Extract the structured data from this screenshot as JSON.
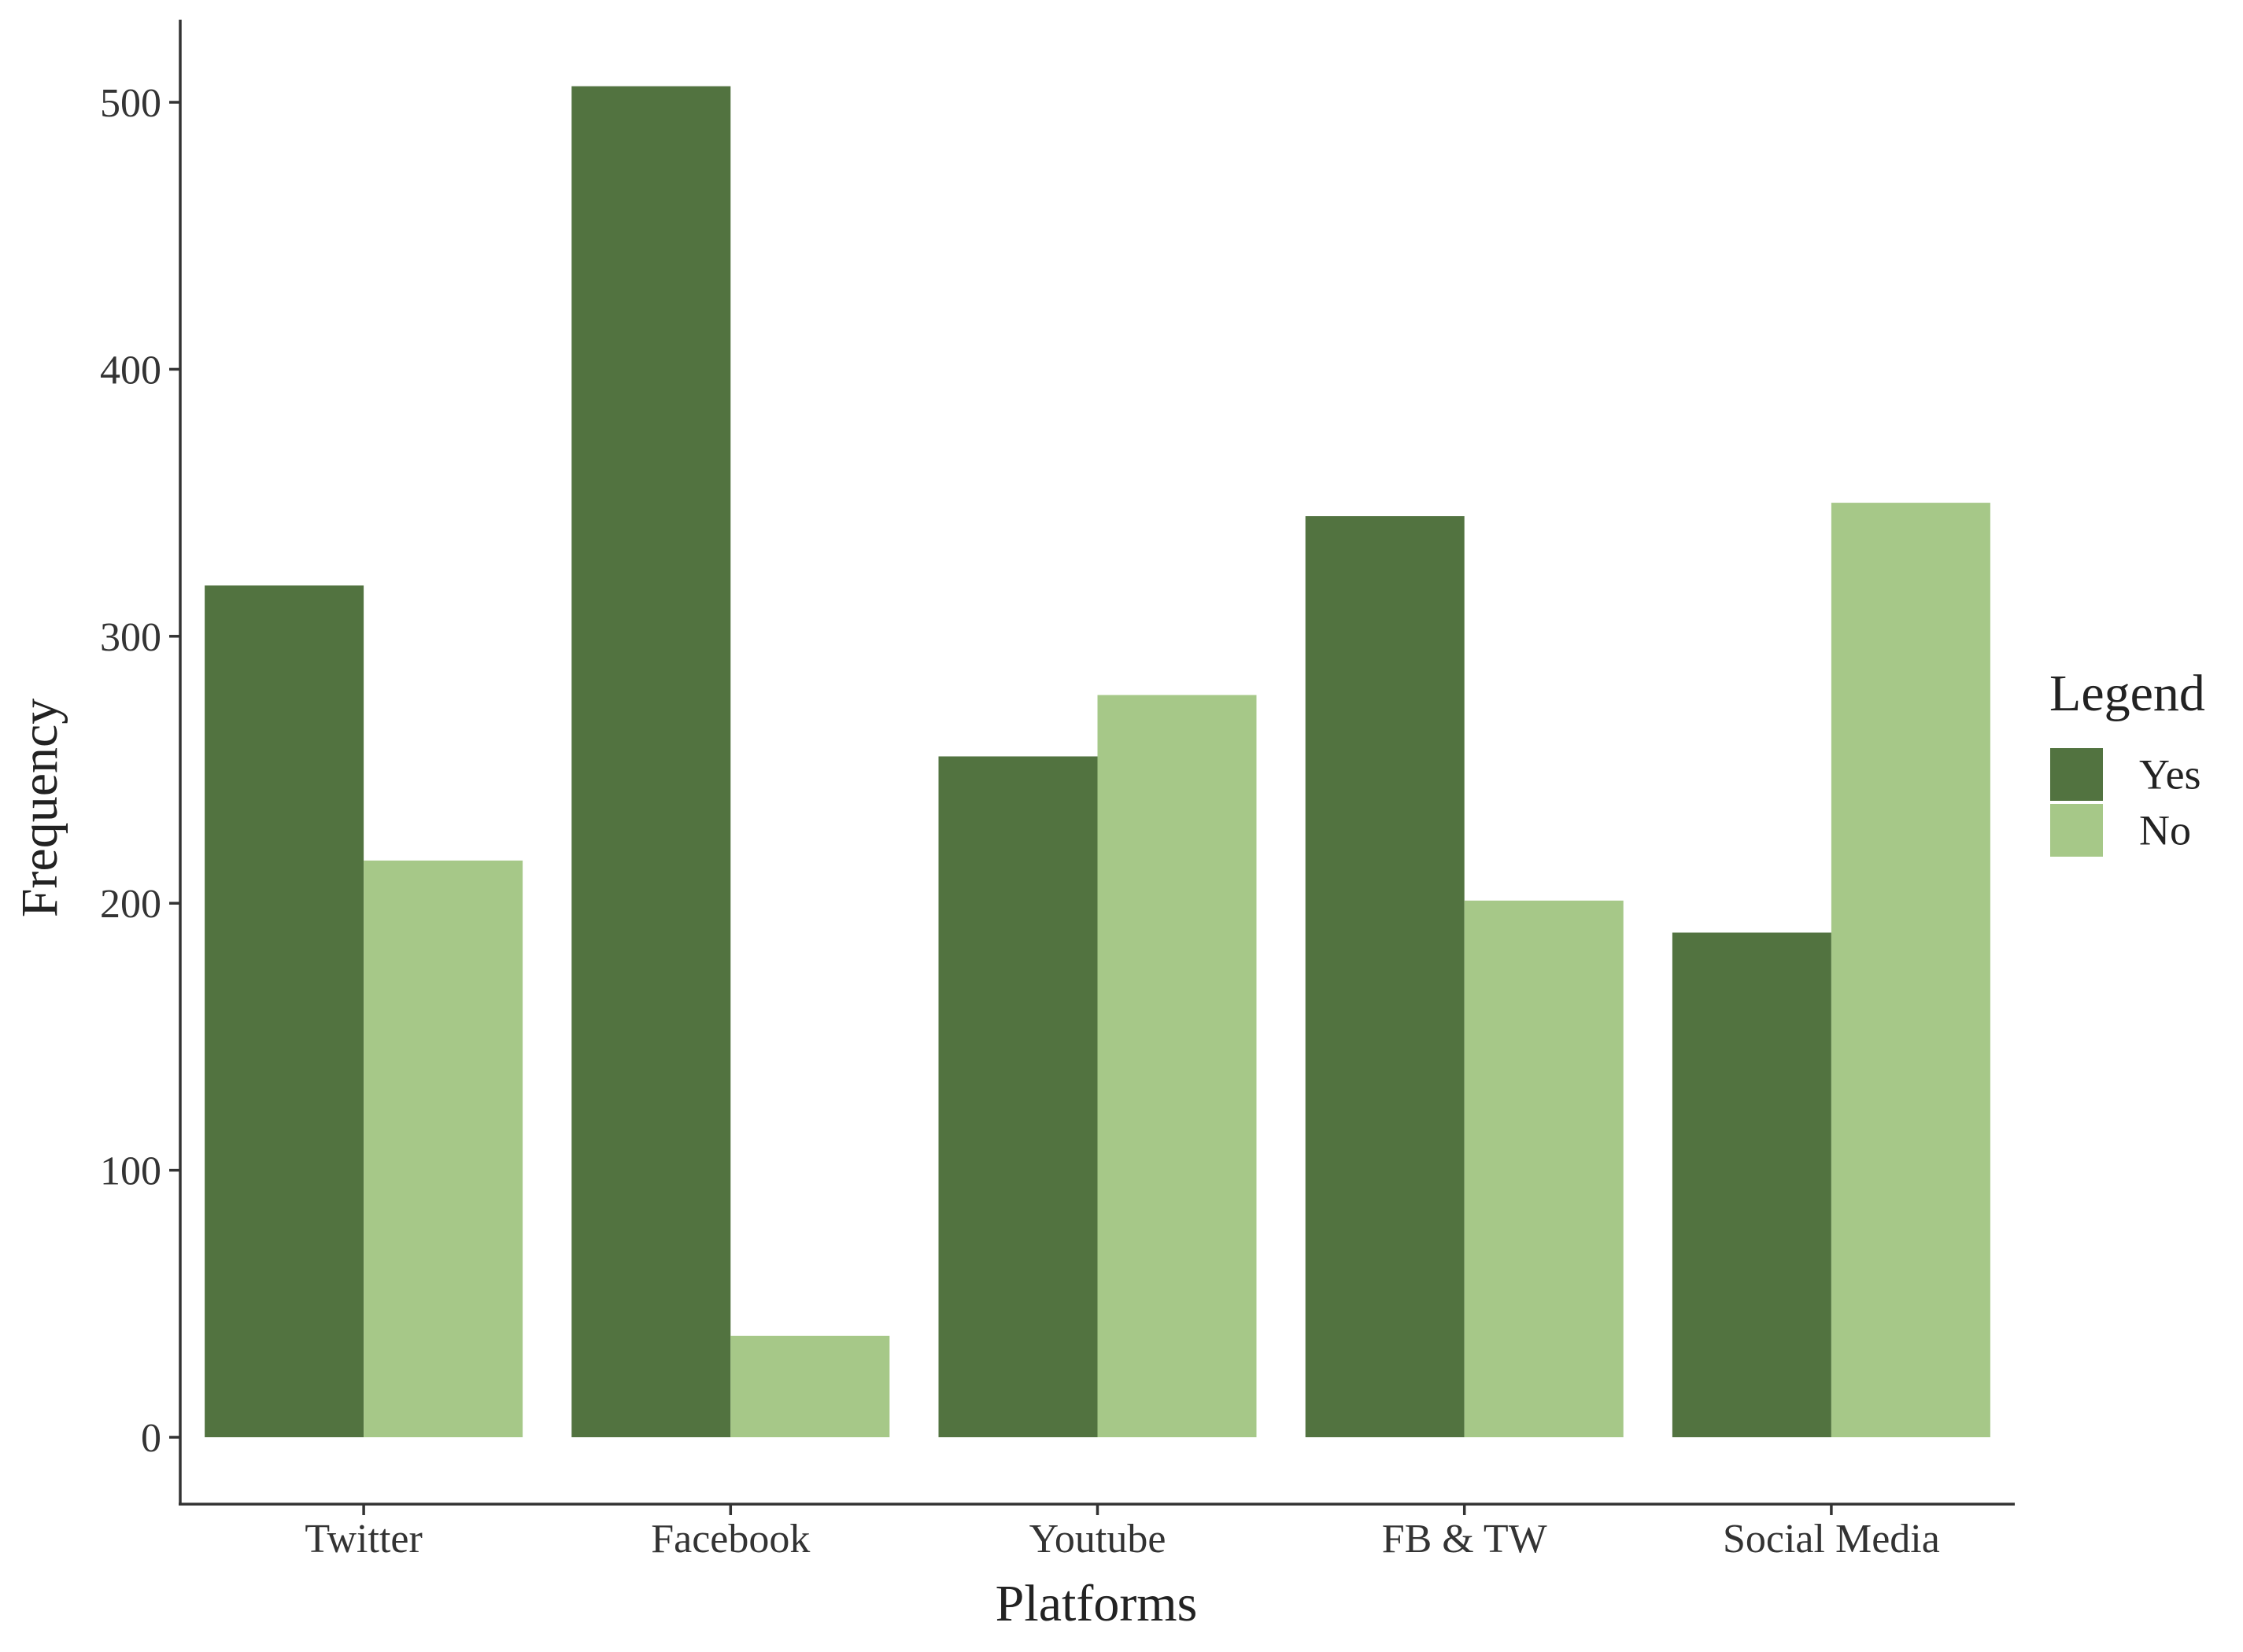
{
  "chart_data": {
    "type": "bar",
    "categories": [
      "Twitter",
      "Facebook",
      "Youtube",
      "FB & TW",
      "Social Media"
    ],
    "series": [
      {
        "name": "Yes",
        "values": [
          319,
          506,
          255,
          345,
          189
        ],
        "color": "#527340"
      },
      {
        "name": "No",
        "values": [
          216,
          38,
          278,
          201,
          350
        ],
        "color": "#a6c888"
      }
    ],
    "title": "",
    "xlabel": "Platforms",
    "ylabel": "Frequency",
    "ylim": [
      -25,
      530
    ],
    "yticks": [
      0,
      100,
      200,
      300,
      400,
      500
    ],
    "grid": false,
    "legend": {
      "title": "Legend",
      "placement": "right"
    }
  }
}
